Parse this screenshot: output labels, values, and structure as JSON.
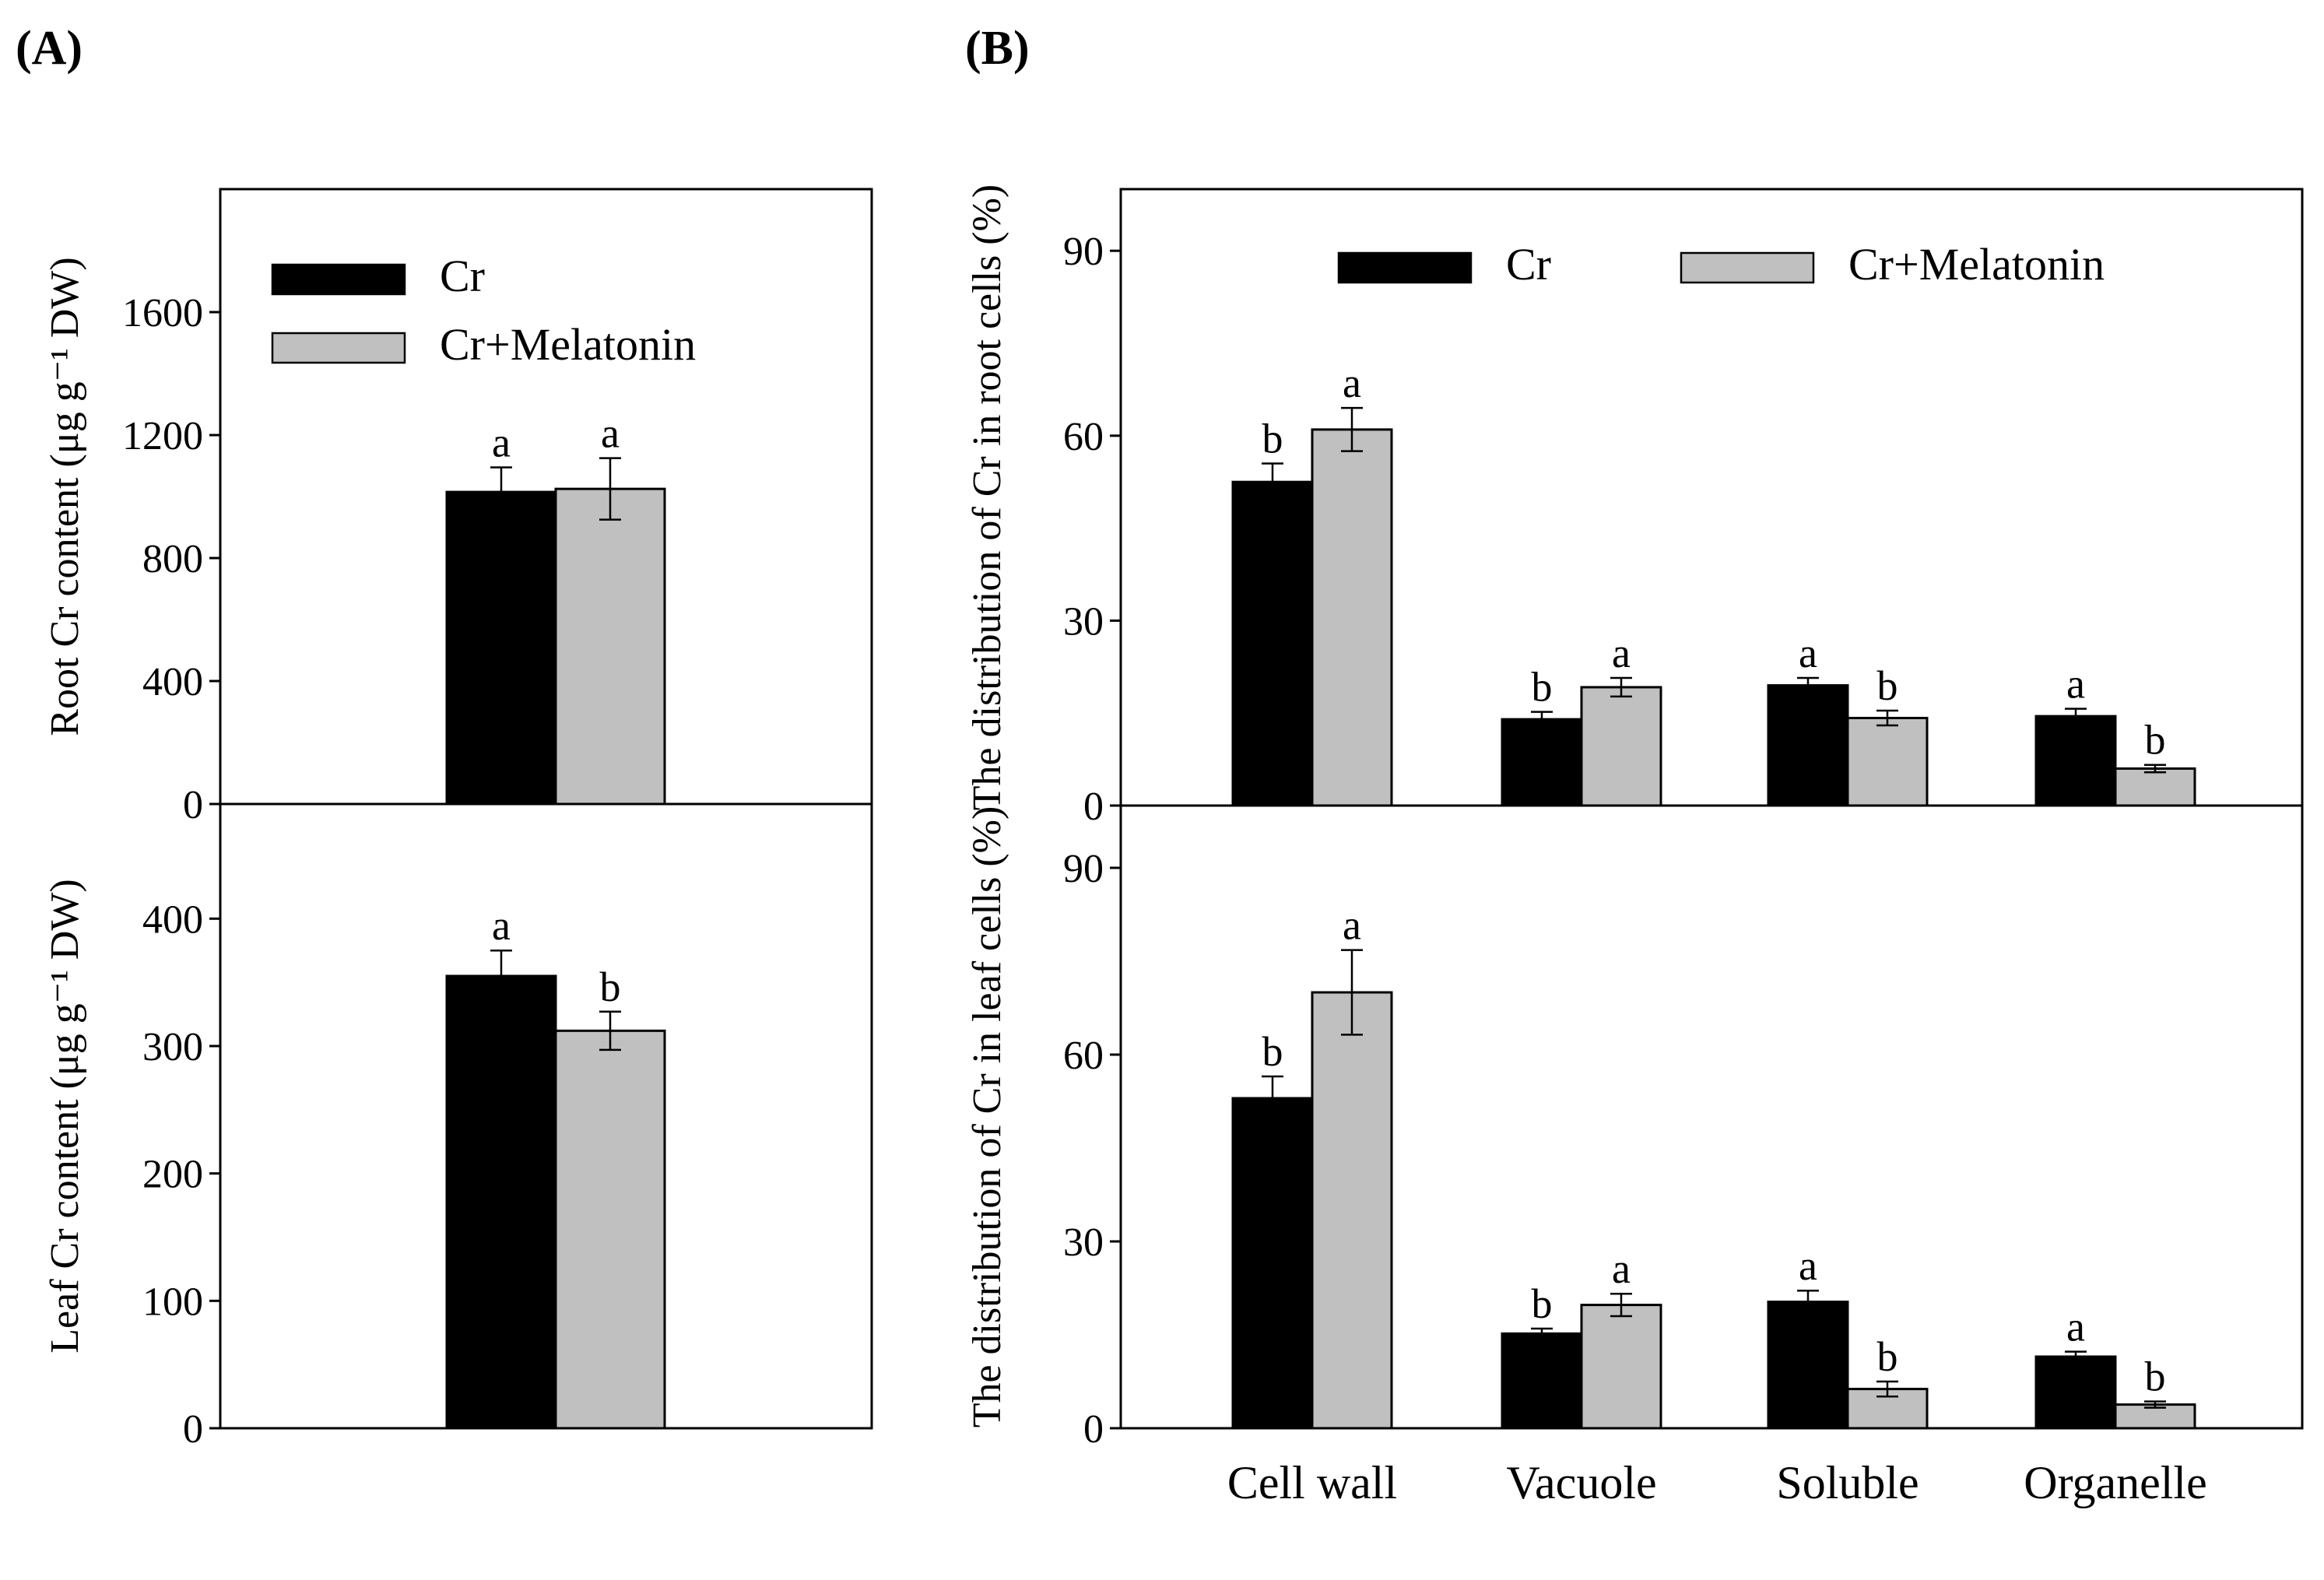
{
  "colors": {
    "cr": "#000000",
    "cr_melatonin": "#c0c0c0",
    "axis": "#000000",
    "background": "#ffffff"
  },
  "chart_data": [
    {
      "id": "A-root",
      "panel": "(A)",
      "type": "bar",
      "title": "",
      "ylabel": "Root Cr content (μg g⁻¹ DW)",
      "ylim": [
        0,
        2000
      ],
      "yticks": [
        0,
        400,
        800,
        1200,
        1600
      ],
      "categories": [
        ""
      ],
      "legend": [
        "Cr",
        "Cr+Melatonin"
      ],
      "legend_position": "top-left",
      "series": [
        {
          "name": "Cr",
          "values": [
            1015
          ],
          "errors": [
            80
          ],
          "letters": [
            "a"
          ]
        },
        {
          "name": "Cr+Melatonin",
          "values": [
            1025
          ],
          "errors": [
            100
          ],
          "letters": [
            "a"
          ]
        }
      ]
    },
    {
      "id": "A-leaf",
      "panel": "",
      "type": "bar",
      "ylabel": "Leaf Cr content (μg g⁻¹ DW)",
      "ylim": [
        0,
        490
      ],
      "yticks": [
        0,
        100,
        200,
        300,
        400
      ],
      "categories": [
        ""
      ],
      "series": [
        {
          "name": "Cr",
          "values": [
            355
          ],
          "errors": [
            20
          ],
          "letters": [
            "a"
          ]
        },
        {
          "name": "Cr+Melatonin",
          "values": [
            312
          ],
          "errors": [
            15
          ],
          "letters": [
            "b"
          ]
        }
      ]
    },
    {
      "id": "B-root",
      "panel": "(B)",
      "type": "bar",
      "ylabel": "The distribution of Cr in root cells (%)",
      "ylim": [
        0,
        100
      ],
      "yticks": [
        0,
        30,
        60,
        90
      ],
      "categories": [
        "Cell wall",
        "Vacuole",
        "Soluble",
        "Organelle"
      ],
      "legend": [
        "Cr",
        "Cr+Melatonin"
      ],
      "legend_position": "top",
      "series": [
        {
          "name": "Cr",
          "values": [
            52.5,
            14,
            19.5,
            14.5
          ],
          "errors": [
            3,
            1.2,
            1.2,
            1.2
          ],
          "letters": [
            "b",
            "b",
            "a",
            "a"
          ]
        },
        {
          "name": "Cr+Melatonin",
          "values": [
            61,
            19.2,
            14.2,
            6
          ],
          "errors": [
            3.5,
            1.5,
            1.2,
            0.6
          ],
          "letters": [
            "a",
            "a",
            "b",
            "b"
          ]
        }
      ]
    },
    {
      "id": "B-leaf",
      "panel": "",
      "type": "bar",
      "ylabel": "The distribution of Cr in leaf cells (%)",
      "ylim": [
        0,
        100
      ],
      "yticks": [
        0,
        30,
        60,
        90
      ],
      "categories": [
        "Cell wall",
        "Vacuole",
        "Soluble",
        "Organelle"
      ],
      "series": [
        {
          "name": "Cr",
          "values": [
            53,
            15.2,
            20.3,
            11.5
          ],
          "errors": [
            3.5,
            0.8,
            1.8,
            0.8
          ],
          "letters": [
            "b",
            "b",
            "a",
            "a"
          ]
        },
        {
          "name": "Cr+Melatonin",
          "values": [
            70,
            19.8,
            6.3,
            3.8
          ],
          "errors": [
            6.8,
            1.8,
            1.2,
            0.5
          ],
          "letters": [
            "a",
            "a",
            "b",
            "b"
          ]
        }
      ]
    }
  ]
}
